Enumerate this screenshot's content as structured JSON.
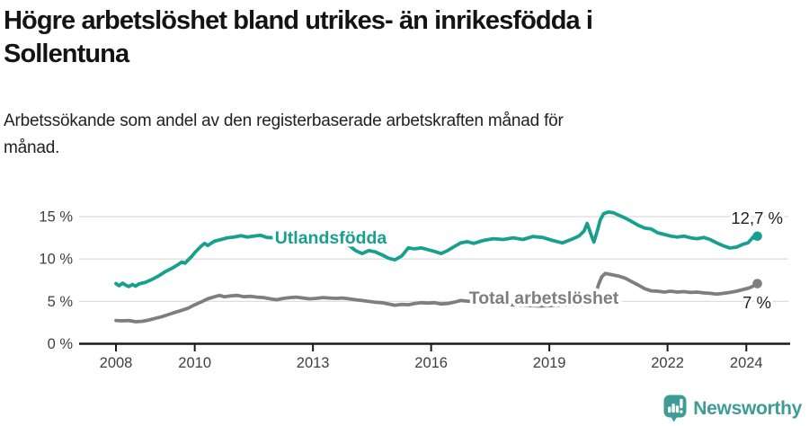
{
  "title": {
    "line1": "Högre arbetslöshet bland utrikes- än inrikesfödda i",
    "line2": "Sollentuna"
  },
  "subtitle": {
    "line1": "Arbetssökande som andel av den registerbaserade arbetskraften månad för",
    "line2": "månad."
  },
  "branding": {
    "logo_text": "Newsworthy"
  },
  "colors": {
    "teal": "#18A08E",
    "gray": "#7E7E7E",
    "logo_teal": "#3E9C96",
    "axis": "#1A1A1A",
    "grid": "#DEDEDE",
    "tick_text": "#3F3F3F",
    "value_label_text": "#1F1F1F",
    "background": "#FFFFFF"
  },
  "chart_data": {
    "type": "line",
    "title": "Högre arbetslöshet bland utrikes- än inrikesfödda i Sollentuna",
    "subtitle": "Arbetssökande som andel av den registerbaserade arbetskraften månad för månad.",
    "xlabel": "",
    "ylabel": "",
    "xlim": [
      2007.1,
      2025.1
    ],
    "ylim": [
      0,
      16.5
    ],
    "grid": "horizontal",
    "legend_position": "inline-labels",
    "x_ticks": [
      {
        "value": 2008,
        "label": "2008"
      },
      {
        "value": 2010,
        "label": "2010"
      },
      {
        "value": 2013,
        "label": "2013"
      },
      {
        "value": 2016,
        "label": "2016"
      },
      {
        "value": 2019,
        "label": "2019"
      },
      {
        "value": 2022,
        "label": "2022"
      },
      {
        "value": 2024,
        "label": "2024"
      }
    ],
    "y_ticks": [
      {
        "value": 0,
        "label": "0 %"
      },
      {
        "value": 5,
        "label": "5 %"
      },
      {
        "value": 10,
        "label": "10 %"
      },
      {
        "value": 15,
        "label": "15 %"
      }
    ],
    "series": [
      {
        "name": "Utlandsfödda",
        "color_key": "teal",
        "end_label": "12,7 %",
        "end_value": 12.7,
        "points": [
          [
            2008.0,
            7.1
          ],
          [
            2008.08,
            6.85
          ],
          [
            2008.17,
            7.15
          ],
          [
            2008.25,
            6.9
          ],
          [
            2008.33,
            6.75
          ],
          [
            2008.42,
            7.0
          ],
          [
            2008.5,
            6.8
          ],
          [
            2008.58,
            7.05
          ],
          [
            2008.75,
            7.25
          ],
          [
            2008.92,
            7.6
          ],
          [
            2009.08,
            8.0
          ],
          [
            2009.25,
            8.5
          ],
          [
            2009.42,
            8.9
          ],
          [
            2009.58,
            9.35
          ],
          [
            2009.67,
            9.65
          ],
          [
            2009.75,
            9.5
          ],
          [
            2009.92,
            10.3
          ],
          [
            2010.0,
            10.75
          ],
          [
            2010.17,
            11.55
          ],
          [
            2010.25,
            11.85
          ],
          [
            2010.33,
            11.6
          ],
          [
            2010.5,
            12.1
          ],
          [
            2010.67,
            12.3
          ],
          [
            2010.83,
            12.5
          ],
          [
            2011.0,
            12.6
          ],
          [
            2011.17,
            12.75
          ],
          [
            2011.33,
            12.6
          ],
          [
            2011.5,
            12.7
          ],
          [
            2011.67,
            12.8
          ],
          [
            2011.83,
            12.55
          ],
          [
            2012.0,
            12.5
          ],
          [
            2012.17,
            12.6
          ],
          [
            2012.33,
            12.4
          ],
          [
            2012.5,
            12.3
          ],
          [
            2012.67,
            12.45
          ],
          [
            2012.83,
            12.35
          ],
          [
            2013.0,
            12.25
          ],
          [
            2013.17,
            12.1
          ],
          [
            2013.33,
            12.15
          ],
          [
            2013.5,
            11.95
          ],
          [
            2013.67,
            11.85
          ],
          [
            2013.83,
            11.9
          ],
          [
            2013.96,
            11.45
          ],
          [
            2014.08,
            11.0
          ],
          [
            2014.25,
            10.65
          ],
          [
            2014.42,
            11.0
          ],
          [
            2014.58,
            10.85
          ],
          [
            2014.75,
            10.5
          ],
          [
            2014.92,
            10.1
          ],
          [
            2015.08,
            9.9
          ],
          [
            2015.25,
            10.35
          ],
          [
            2015.42,
            11.3
          ],
          [
            2015.58,
            11.2
          ],
          [
            2015.75,
            11.3
          ],
          [
            2015.92,
            11.1
          ],
          [
            2016.08,
            10.9
          ],
          [
            2016.25,
            10.65
          ],
          [
            2016.42,
            11.0
          ],
          [
            2016.58,
            11.45
          ],
          [
            2016.75,
            11.9
          ],
          [
            2016.92,
            12.05
          ],
          [
            2017.08,
            11.85
          ],
          [
            2017.33,
            12.2
          ],
          [
            2017.58,
            12.4
          ],
          [
            2017.83,
            12.3
          ],
          [
            2018.08,
            12.5
          ],
          [
            2018.33,
            12.3
          ],
          [
            2018.58,
            12.65
          ],
          [
            2018.83,
            12.55
          ],
          [
            2019.08,
            12.2
          ],
          [
            2019.33,
            11.9
          ],
          [
            2019.58,
            12.35
          ],
          [
            2019.75,
            12.7
          ],
          [
            2019.88,
            13.3
          ],
          [
            2019.96,
            14.2
          ],
          [
            2020.08,
            12.6
          ],
          [
            2020.13,
            12.0
          ],
          [
            2020.21,
            13.2
          ],
          [
            2020.29,
            14.6
          ],
          [
            2020.38,
            15.35
          ],
          [
            2020.5,
            15.55
          ],
          [
            2020.63,
            15.45
          ],
          [
            2020.75,
            15.2
          ],
          [
            2020.92,
            14.85
          ],
          [
            2021.08,
            14.45
          ],
          [
            2021.25,
            14.0
          ],
          [
            2021.42,
            13.65
          ],
          [
            2021.58,
            13.55
          ],
          [
            2021.75,
            13.1
          ],
          [
            2021.92,
            12.9
          ],
          [
            2022.08,
            12.7
          ],
          [
            2022.25,
            12.6
          ],
          [
            2022.42,
            12.7
          ],
          [
            2022.58,
            12.5
          ],
          [
            2022.75,
            12.4
          ],
          [
            2022.92,
            12.55
          ],
          [
            2023.08,
            12.3
          ],
          [
            2023.25,
            11.9
          ],
          [
            2023.42,
            11.55
          ],
          [
            2023.58,
            11.3
          ],
          [
            2023.75,
            11.4
          ],
          [
            2023.92,
            11.75
          ],
          [
            2024.04,
            11.9
          ],
          [
            2024.13,
            12.35
          ],
          [
            2024.17,
            12.6
          ],
          [
            2024.21,
            12.45
          ],
          [
            2024.28,
            12.7
          ]
        ]
      },
      {
        "name": "Total arbetslöshet",
        "color_key": "gray",
        "end_label": "7 %",
        "end_value": 7.0,
        "points": [
          [
            2008.0,
            2.75
          ],
          [
            2008.17,
            2.7
          ],
          [
            2008.33,
            2.75
          ],
          [
            2008.5,
            2.6
          ],
          [
            2008.67,
            2.65
          ],
          [
            2008.83,
            2.8
          ],
          [
            2009.0,
            3.0
          ],
          [
            2009.17,
            3.2
          ],
          [
            2009.33,
            3.45
          ],
          [
            2009.5,
            3.7
          ],
          [
            2009.67,
            3.95
          ],
          [
            2009.83,
            4.2
          ],
          [
            2010.0,
            4.6
          ],
          [
            2010.17,
            4.95
          ],
          [
            2010.33,
            5.3
          ],
          [
            2010.5,
            5.55
          ],
          [
            2010.63,
            5.7
          ],
          [
            2010.75,
            5.55
          ],
          [
            2010.92,
            5.65
          ],
          [
            2011.08,
            5.7
          ],
          [
            2011.25,
            5.55
          ],
          [
            2011.42,
            5.6
          ],
          [
            2011.58,
            5.5
          ],
          [
            2011.75,
            5.45
          ],
          [
            2011.92,
            5.3
          ],
          [
            2012.08,
            5.2
          ],
          [
            2012.25,
            5.35
          ],
          [
            2012.42,
            5.45
          ],
          [
            2012.58,
            5.5
          ],
          [
            2012.75,
            5.4
          ],
          [
            2012.92,
            5.3
          ],
          [
            2013.08,
            5.35
          ],
          [
            2013.25,
            5.45
          ],
          [
            2013.42,
            5.4
          ],
          [
            2013.58,
            5.35
          ],
          [
            2013.75,
            5.4
          ],
          [
            2013.92,
            5.3
          ],
          [
            2014.08,
            5.2
          ],
          [
            2014.25,
            5.1
          ],
          [
            2014.42,
            5.0
          ],
          [
            2014.58,
            4.9
          ],
          [
            2014.75,
            4.85
          ],
          [
            2014.92,
            4.7
          ],
          [
            2015.08,
            4.55
          ],
          [
            2015.25,
            4.65
          ],
          [
            2015.42,
            4.6
          ],
          [
            2015.58,
            4.75
          ],
          [
            2015.75,
            4.85
          ],
          [
            2015.92,
            4.8
          ],
          [
            2016.08,
            4.85
          ],
          [
            2016.25,
            4.7
          ],
          [
            2016.42,
            4.75
          ],
          [
            2016.58,
            4.9
          ],
          [
            2016.75,
            5.1
          ],
          [
            2017.0,
            5.0
          ],
          [
            2017.25,
            4.85
          ],
          [
            2017.5,
            4.75
          ],
          [
            2017.75,
            4.7
          ],
          [
            2018.0,
            4.6
          ],
          [
            2018.25,
            4.55
          ],
          [
            2018.5,
            4.5
          ],
          [
            2018.75,
            4.45
          ],
          [
            2019.0,
            4.5
          ],
          [
            2019.25,
            4.55
          ],
          [
            2019.5,
            4.6
          ],
          [
            2019.75,
            4.65
          ],
          [
            2020.0,
            4.7
          ],
          [
            2020.08,
            5.0
          ],
          [
            2020.17,
            5.8
          ],
          [
            2020.25,
            7.0
          ],
          [
            2020.33,
            7.9
          ],
          [
            2020.42,
            8.3
          ],
          [
            2020.58,
            8.15
          ],
          [
            2020.75,
            8.0
          ],
          [
            2020.92,
            7.75
          ],
          [
            2021.08,
            7.35
          ],
          [
            2021.25,
            6.95
          ],
          [
            2021.42,
            6.5
          ],
          [
            2021.58,
            6.25
          ],
          [
            2021.75,
            6.2
          ],
          [
            2021.92,
            6.1
          ],
          [
            2022.08,
            6.2
          ],
          [
            2022.25,
            6.1
          ],
          [
            2022.42,
            6.15
          ],
          [
            2022.58,
            6.05
          ],
          [
            2022.75,
            6.1
          ],
          [
            2022.92,
            6.0
          ],
          [
            2023.08,
            5.95
          ],
          [
            2023.25,
            5.85
          ],
          [
            2023.42,
            5.95
          ],
          [
            2023.58,
            6.05
          ],
          [
            2023.75,
            6.2
          ],
          [
            2023.92,
            6.4
          ],
          [
            2024.08,
            6.6
          ],
          [
            2024.17,
            6.8
          ],
          [
            2024.28,
            7.1
          ]
        ]
      }
    ]
  }
}
